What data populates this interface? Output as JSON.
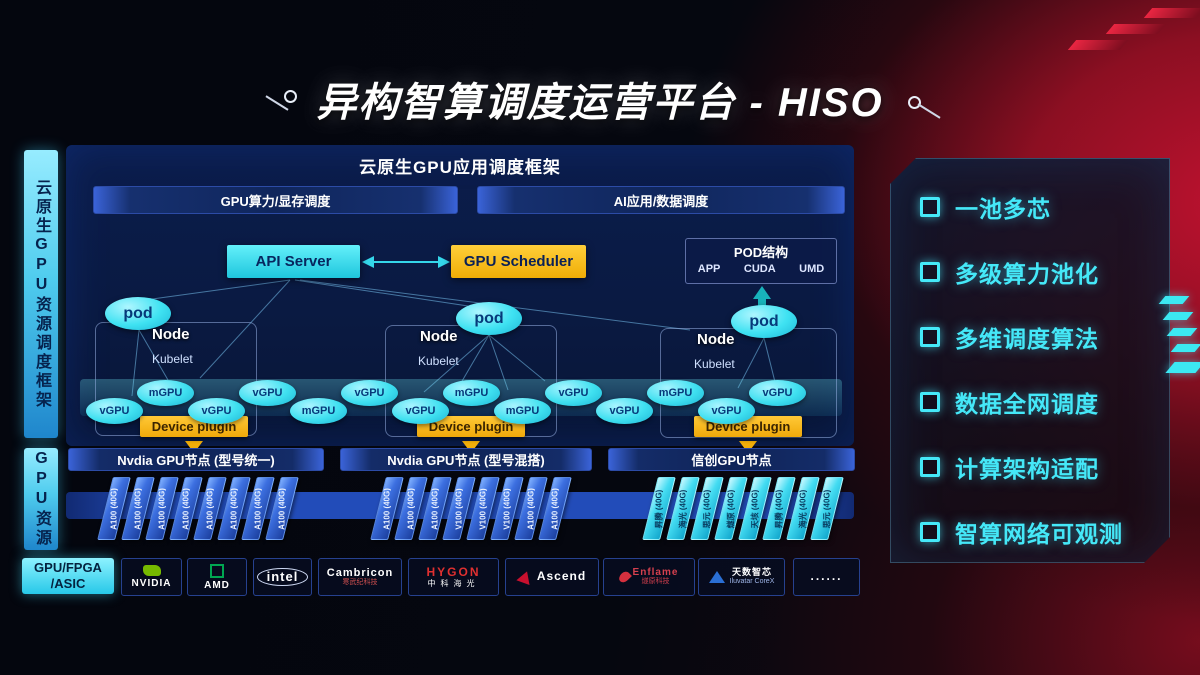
{
  "title": "异构智算调度运营平台 - HISO",
  "sidebar": {
    "framework_label": "云原生GPU资源调度框架",
    "gpu_resource_label": "GPU资源",
    "hardware_label_line1": "GPU/FPGA",
    "hardware_label_line2": "/ASIC"
  },
  "scheduling": {
    "header": "云原生GPU应用调度框架",
    "lanes": [
      {
        "label": "GPU算力/显存调度"
      },
      {
        "label": "AI应用/数据调度"
      }
    ],
    "api_server": "API Server",
    "gpu_scheduler": "GPU Scheduler",
    "pod_structure": {
      "title": "POD结构",
      "items": [
        "APP",
        "CUDA",
        "UMD"
      ]
    },
    "nodes": [
      {
        "pod": "pod",
        "name": "Node",
        "agent": "Kubelet",
        "device_plugin": "Device plugin"
      },
      {
        "pod": "pod",
        "name": "Node",
        "agent": "Kubelet",
        "device_plugin": "Device plugin"
      },
      {
        "pod": "pod",
        "name": "Node",
        "agent": "Kubelet",
        "device_plugin": "Device plugin"
      }
    ],
    "gpu_units": [
      {
        "label": "vGPU",
        "row": "low"
      },
      {
        "label": "mGPU",
        "row": "high"
      },
      {
        "label": "vGPU",
        "row": "low"
      },
      {
        "label": "vGPU",
        "row": "high"
      },
      {
        "label": "mGPU",
        "row": "low"
      },
      {
        "label": "vGPU",
        "row": "high"
      },
      {
        "label": "vGPU",
        "row": "low"
      },
      {
        "label": "mGPU",
        "row": "high"
      },
      {
        "label": "mGPU",
        "row": "low"
      },
      {
        "label": "vGPU",
        "row": "high"
      },
      {
        "label": "vGPU",
        "row": "low"
      },
      {
        "label": "mGPU",
        "row": "high"
      },
      {
        "label": "vGPU",
        "row": "low"
      },
      {
        "label": "vGPU",
        "row": "high"
      }
    ]
  },
  "gpu_node_groups": [
    {
      "title": "Nvdia GPU节点 (型号统一)",
      "style": "blue",
      "cards": [
        "A100 (40G)",
        "A100 (40G)",
        "A100 (40G)",
        "A100 (40G)",
        "A100 (40G)",
        "A100 (40G)",
        "A100 (40G)",
        "A100 (40G)"
      ]
    },
    {
      "title": "Nvdia GPU节点 (型号混搭)",
      "style": "blue",
      "cards": [
        "A100 (40G)",
        "A100 (40G)",
        "A100 (40G)",
        "V100 (40G)",
        "V100 (40G)",
        "V100 (40G)",
        "A100 (40G)",
        "A100 (40G)"
      ]
    },
    {
      "title": "信创GPU节点",
      "style": "cyan",
      "cards": [
        "昇腾 (40G)",
        "海光 (40G)",
        "思元 (40G)",
        "燧原 (40G)",
        "天垓 (40G)",
        "昇腾 (40G)",
        "海光 (40G)",
        "思元 (40G)"
      ]
    }
  ],
  "vendors": [
    {
      "name": "NVIDIA",
      "sub": "",
      "icon": "nvidia-eye-icon",
      "style": "nvidia"
    },
    {
      "name": "AMD",
      "sub": "",
      "icon": "amd-arrow-icon",
      "style": "amd"
    },
    {
      "name": "intel",
      "sub": "",
      "icon": "",
      "style": "intel"
    },
    {
      "name": "Cambricon",
      "sub": "寒武纪科技",
      "icon": "",
      "style": "cambricon"
    },
    {
      "name": "HYGON",
      "sub": "中科海光",
      "icon": "",
      "style": "hygon"
    },
    {
      "name": "Ascend",
      "sub": "",
      "icon": "ascend-triangle-icon",
      "style": "ascend"
    },
    {
      "name": "Enflame",
      "sub": "燧原科技",
      "icon": "enflame-flame-icon",
      "style": "enflame"
    },
    {
      "name": "天数智芯",
      "sub": "Iluvatar CoreX",
      "icon": "iluvatar-triangle-icon",
      "style": "iluvatar"
    },
    {
      "name": "......",
      "sub": "",
      "icon": "",
      "style": "dots"
    }
  ],
  "features": {
    "items": [
      {
        "label": "一池多芯"
      },
      {
        "label": "多级算力池化"
      },
      {
        "label": "多维调度算法"
      },
      {
        "label": "数据全网调度"
      },
      {
        "label": "计算架构适配"
      },
      {
        "label": "智算网络可观测"
      }
    ]
  },
  "colors": {
    "accent_cyan": "#3ce8f2",
    "accent_yellow": "#f2ae08",
    "panel_navy": "#0b1d4c",
    "background_red": "#a01226",
    "card_blue": "#3c6fe0",
    "vendor_green": "#76b900"
  }
}
